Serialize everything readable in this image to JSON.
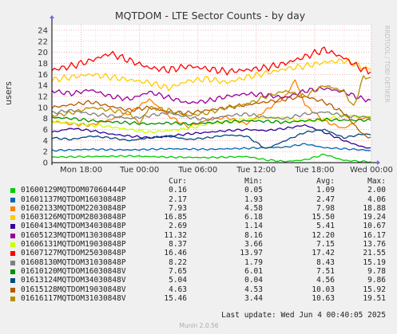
{
  "chart_data": {
    "type": "line",
    "title": "MQTDOM - LTE Sector Counts - by day",
    "ylabel": "users",
    "ylim": [
      0,
      25
    ],
    "yticks": [
      0,
      2,
      4,
      6,
      8,
      10,
      12,
      14,
      16,
      18,
      20,
      22,
      24
    ],
    "xlim": [
      0,
      32.75
    ],
    "x_units": "hours since Tue 2025-06-03 15:00",
    "xticks": [
      {
        "label": "Mon 18:00",
        "x": 3
      },
      {
        "label": "Tue 00:00",
        "x": 9
      },
      {
        "label": "Tue 06:00",
        "x": 15
      },
      {
        "label": "Tue 12:00",
        "x": 21
      },
      {
        "label": "Tue 18:00",
        "x": 27
      },
      {
        "label": "Wed 00:00",
        "x": 33
      }
    ],
    "side_label": "RRDTOOL / TOBI OETIKER",
    "version": "Munin 2.0.56",
    "grid": true,
    "series": [
      {
        "name": "01600129MQTDOM07060444P",
        "color": "#00cc00",
        "cur": 0.16,
        "min": 0.05,
        "avg": 1.09,
        "max": 2.0,
        "points": [
          [
            0,
            1.0
          ],
          [
            4,
            1.1
          ],
          [
            8,
            1.2
          ],
          [
            12,
            1.0
          ],
          [
            16,
            0.9
          ],
          [
            20,
            1.1
          ],
          [
            22,
            0.5
          ],
          [
            24,
            0.2
          ],
          [
            26,
            0.5
          ],
          [
            28,
            1.5
          ],
          [
            30,
            0.4
          ],
          [
            32,
            0.2
          ],
          [
            32.75,
            0.16
          ]
        ]
      },
      {
        "name": "01601137MQTDOM16030848P",
        "color": "#0066b3",
        "cur": 2.17,
        "min": 1.93,
        "avg": 2.47,
        "max": 4.06,
        "points": [
          [
            0,
            2.2
          ],
          [
            4,
            2.4
          ],
          [
            8,
            2.3
          ],
          [
            12,
            2.5
          ],
          [
            16,
            2.4
          ],
          [
            20,
            2.6
          ],
          [
            24,
            2.8
          ],
          [
            26,
            3.4
          ],
          [
            28,
            2.7
          ],
          [
            30,
            2.5
          ],
          [
            32,
            2.3
          ],
          [
            32.75,
            2.17
          ]
        ]
      },
      {
        "name": "01602133MQTDOM22030848P",
        "color": "#ff8000",
        "cur": 7.93,
        "min": 4.58,
        "avg": 7.98,
        "max": 18.88,
        "points": [
          [
            0,
            7.5
          ],
          [
            2,
            7.0
          ],
          [
            4,
            6.8
          ],
          [
            6,
            7.8
          ],
          [
            8,
            9.0
          ],
          [
            10,
            11.5
          ],
          [
            12,
            8.5
          ],
          [
            14,
            6.5
          ],
          [
            16,
            7.8
          ],
          [
            18,
            8.2
          ],
          [
            20,
            7.0
          ],
          [
            22,
            9.5
          ],
          [
            24,
            12.0
          ],
          [
            25,
            15.0
          ],
          [
            26,
            10.5
          ],
          [
            28,
            7.5
          ],
          [
            30,
            6.2
          ],
          [
            32,
            8.2
          ],
          [
            32.75,
            7.93
          ]
        ]
      },
      {
        "name": "01603126MQTDOM28030848P",
        "color": "#ffcc00",
        "cur": 16.85,
        "min": 6.18,
        "avg": 15.5,
        "max": 19.24,
        "points": [
          [
            0,
            15.0
          ],
          [
            2,
            15.5
          ],
          [
            4,
            16.0
          ],
          [
            6,
            15.5
          ],
          [
            8,
            15.0
          ],
          [
            10,
            14.5
          ],
          [
            12,
            13.5
          ],
          [
            14,
            14.8
          ],
          [
            16,
            15.2
          ],
          [
            18,
            14.5
          ],
          [
            20,
            15.5
          ],
          [
            22,
            16.2
          ],
          [
            24,
            17.0
          ],
          [
            26,
            17.5
          ],
          [
            28,
            18.2
          ],
          [
            30,
            18.5
          ],
          [
            31,
            18.0
          ],
          [
            32,
            17.2
          ],
          [
            32.75,
            16.85
          ]
        ]
      },
      {
        "name": "01604134MQTDOM34030848P",
        "color": "#330099",
        "cur": 2.69,
        "min": 1.14,
        "avg": 5.41,
        "max": 10.67,
        "points": [
          [
            0,
            5.5
          ],
          [
            2,
            6.2
          ],
          [
            4,
            5.8
          ],
          [
            6,
            5.2
          ],
          [
            8,
            4.8
          ],
          [
            10,
            4.5
          ],
          [
            12,
            4.8
          ],
          [
            14,
            5.2
          ],
          [
            16,
            5.5
          ],
          [
            18,
            5.8
          ],
          [
            20,
            6.0
          ],
          [
            22,
            5.8
          ],
          [
            24,
            6.2
          ],
          [
            26,
            6.8
          ],
          [
            28,
            5.5
          ],
          [
            30,
            4.0
          ],
          [
            32,
            2.8
          ],
          [
            32.75,
            2.69
          ]
        ]
      },
      {
        "name": "01605123MQTDOM13030848P",
        "color": "#990099",
        "cur": 11.32,
        "min": 8.16,
        "avg": 12.2,
        "max": 16.17,
        "points": [
          [
            0,
            13.0
          ],
          [
            2,
            12.5
          ],
          [
            4,
            13.2
          ],
          [
            6,
            12.0
          ],
          [
            8,
            11.5
          ],
          [
            10,
            12.8
          ],
          [
            12,
            11.8
          ],
          [
            14,
            10.8
          ],
          [
            16,
            11.2
          ],
          [
            18,
            12.0
          ],
          [
            20,
            12.5
          ],
          [
            22,
            12.2
          ],
          [
            24,
            11.8
          ],
          [
            26,
            13.0
          ],
          [
            28,
            13.5
          ],
          [
            30,
            12.8
          ],
          [
            32,
            11.5
          ],
          [
            32.75,
            11.32
          ]
        ]
      },
      {
        "name": "01606131MQTDOM19030848P",
        "color": "#ccff00",
        "cur": 8.37,
        "min": 3.66,
        "avg": 7.15,
        "astd": 0,
        "max": 13.76,
        "points": [
          [
            0,
            7.5
          ],
          [
            2,
            7.2
          ],
          [
            4,
            6.8
          ],
          [
            6,
            6.5
          ],
          [
            8,
            6.0
          ],
          [
            10,
            5.5
          ],
          [
            12,
            5.8
          ],
          [
            14,
            6.2
          ],
          [
            16,
            7.0
          ],
          [
            18,
            7.5
          ],
          [
            20,
            7.8
          ],
          [
            22,
            8.2
          ],
          [
            24,
            8.0
          ],
          [
            26,
            7.5
          ],
          [
            28,
            7.8
          ],
          [
            30,
            8.5
          ],
          [
            32,
            8.3
          ],
          [
            32.75,
            8.37
          ]
        ]
      },
      {
        "name": "01607127MQTDOM25030848P",
        "color": "#ff0000",
        "cur": 16.46,
        "min": 13.97,
        "avg": 17.42,
        "max": 21.55,
        "points": [
          [
            0,
            16.8
          ],
          [
            2,
            17.5
          ],
          [
            4,
            18.5
          ],
          [
            6,
            19.8
          ],
          [
            8,
            18.5
          ],
          [
            10,
            17.2
          ],
          [
            12,
            16.8
          ],
          [
            14,
            17.5
          ],
          [
            16,
            17.0
          ],
          [
            18,
            16.5
          ],
          [
            20,
            16.8
          ],
          [
            22,
            17.2
          ],
          [
            24,
            18.0
          ],
          [
            26,
            19.2
          ],
          [
            28,
            20.5
          ],
          [
            30,
            19.0
          ],
          [
            32,
            16.8
          ],
          [
            32.75,
            16.46
          ]
        ]
      },
      {
        "name": "01608130MQTDOM31030848P",
        "color": "#808080",
        "cur": 8.22,
        "min": 1.79,
        "avg": 8.43,
        "max": 15.19,
        "points": [
          [
            0,
            9.0
          ],
          [
            2,
            9.5
          ],
          [
            4,
            8.8
          ],
          [
            6,
            8.5
          ],
          [
            8,
            8.0
          ],
          [
            10,
            8.5
          ],
          [
            12,
            9.0
          ],
          [
            14,
            8.2
          ],
          [
            16,
            7.8
          ],
          [
            18,
            8.5
          ],
          [
            20,
            8.8
          ],
          [
            22,
            8.2
          ],
          [
            24,
            8.0
          ],
          [
            26,
            8.8
          ],
          [
            28,
            9.2
          ],
          [
            30,
            8.5
          ],
          [
            32,
            8.3
          ],
          [
            32.75,
            8.22
          ]
        ]
      },
      {
        "name": "01610120MQTDOM16030848V",
        "color": "#008f00",
        "cur": 7.65,
        "min": 6.01,
        "avg": 7.51,
        "max": 9.78,
        "points": [
          [
            0,
            8.2
          ],
          [
            2,
            8.0
          ],
          [
            4,
            7.6
          ],
          [
            6,
            7.4
          ],
          [
            8,
            7.2
          ],
          [
            10,
            7.0
          ],
          [
            12,
            7.2
          ],
          [
            14,
            7.0
          ],
          [
            16,
            7.2
          ],
          [
            18,
            7.4
          ],
          [
            20,
            7.6
          ],
          [
            22,
            7.5
          ],
          [
            24,
            7.3
          ],
          [
            26,
            7.6
          ],
          [
            28,
            7.8
          ],
          [
            30,
            7.7
          ],
          [
            32,
            7.7
          ],
          [
            32.75,
            7.65
          ]
        ]
      },
      {
        "name": "01613124MQTDOM34030848V",
        "color": "#00487d",
        "cur": 5.04,
        "min": 0.04,
        "avg": 4.56,
        "max": 9.86,
        "points": [
          [
            0,
            4.5
          ],
          [
            2,
            4.2
          ],
          [
            4,
            4.8
          ],
          [
            6,
            4.5
          ],
          [
            8,
            4.0
          ],
          [
            10,
            4.5
          ],
          [
            12,
            4.8
          ],
          [
            14,
            4.2
          ],
          [
            16,
            4.5
          ],
          [
            18,
            5.0
          ],
          [
            20,
            4.8
          ],
          [
            22,
            2.5
          ],
          [
            24,
            4.0
          ],
          [
            26,
            5.5
          ],
          [
            28,
            6.0
          ],
          [
            30,
            4.5
          ],
          [
            32,
            5.2
          ],
          [
            32.75,
            5.04
          ]
        ]
      },
      {
        "name": "01615128MQTDOM19030848V",
        "color": "#b35a00",
        "cur": 4.63,
        "min": 4.53,
        "avg": 10.03,
        "max": 15.92,
        "points": [
          [
            0,
            10.0
          ],
          [
            2,
            10.5
          ],
          [
            4,
            11.0
          ],
          [
            6,
            10.2
          ],
          [
            8,
            9.5
          ],
          [
            10,
            10.0
          ],
          [
            12,
            9.2
          ],
          [
            14,
            9.0
          ],
          [
            16,
            9.5
          ],
          [
            18,
            10.0
          ],
          [
            20,
            10.5
          ],
          [
            22,
            11.0
          ],
          [
            24,
            11.5
          ],
          [
            26,
            12.0
          ],
          [
            28,
            11.0
          ],
          [
            30,
            9.0
          ],
          [
            32,
            5.0
          ],
          [
            32.75,
            4.63
          ]
        ]
      },
      {
        "name": "01616117MQTDOM31030848V",
        "color": "#b38f00",
        "cur": 15.46,
        "min": 3.44,
        "avg": 10.63,
        "max": 19.51,
        "points": [
          [
            0,
            8.5
          ],
          [
            2,
            9.0
          ],
          [
            4,
            10.0
          ],
          [
            6,
            9.5
          ],
          [
            8,
            9.0
          ],
          [
            9,
            7.0
          ],
          [
            10,
            10.0
          ],
          [
            12,
            9.5
          ],
          [
            14,
            8.5
          ],
          [
            16,
            9.0
          ],
          [
            18,
            10.0
          ],
          [
            20,
            10.5
          ],
          [
            22,
            12.0
          ],
          [
            24,
            13.0
          ],
          [
            26,
            12.0
          ],
          [
            28,
            14.0
          ],
          [
            30,
            13.0
          ],
          [
            31,
            10.0
          ],
          [
            32,
            15.5
          ],
          [
            32.75,
            15.46
          ]
        ]
      }
    ]
  },
  "legend": {
    "col_cur": "Cur:",
    "col_min": "Min:",
    "col_avg": "Avg:",
    "col_max": "Max:",
    "rows": [
      {
        "name": "01600129MQTDOM07060444P",
        "cur": "0.16",
        "min": "0.05",
        "avg": "1.09",
        "max": "2.00"
      },
      {
        "name": "01601137MQTDOM16030848P",
        "cur": "2.17",
        "min": "1.93",
        "avg": "2.47",
        "max": "4.06"
      },
      {
        "name": "01602133MQTDOM22030848P",
        "cur": "7.93",
        "min": "4.58",
        "avg": "7.98",
        "max": "18.88"
      },
      {
        "name": "01603126MQTDOM28030848P",
        "cur": "16.85",
        "min": "6.18",
        "avg": "15.50",
        "max": "19.24"
      },
      {
        "name": "01604134MQTDOM34030848P",
        "cur": "2.69",
        "min": "1.14",
        "avg": "5.41",
        "max": "10.67"
      },
      {
        "name": "01605123MQTDOM13030848P",
        "cur": "11.32",
        "min": "8.16",
        "avg": "12.20",
        "max": "16.17"
      },
      {
        "name": "01606131MQTDOM19030848P",
        "cur": "8.37",
        "min": "3.66",
        "avg": "7.15",
        "max": "13.76"
      },
      {
        "name": "01607127MQTDOM25030848P",
        "cur": "16.46",
        "min": "13.97",
        "avg": "17.42",
        "max": "21.55"
      },
      {
        "name": "01608130MQTDOM31030848P",
        "cur": "8.22",
        "min": "1.79",
        "avg": "8.43",
        "max": "15.19"
      },
      {
        "name": "01610120MQTDOM16030848V",
        "cur": "7.65",
        "min": "6.01",
        "avg": "7.51",
        "max": "9.78"
      },
      {
        "name": "01613124MQTDOM34030848V",
        "cur": "5.04",
        "min": "0.04",
        "avg": "4.56",
        "max": "9.86"
      },
      {
        "name": "01615128MQTDOM19030848V",
        "cur": "4.63",
        "min": "4.53",
        "avg": "10.03",
        "max": "15.92"
      },
      {
        "name": "01616117MQTDOM31030848V",
        "cur": "15.46",
        "min": "3.44",
        "avg": "10.63",
        "max": "19.51"
      }
    ]
  },
  "last_update": "Last update: Wed Jun  4 00:40:05 2025"
}
